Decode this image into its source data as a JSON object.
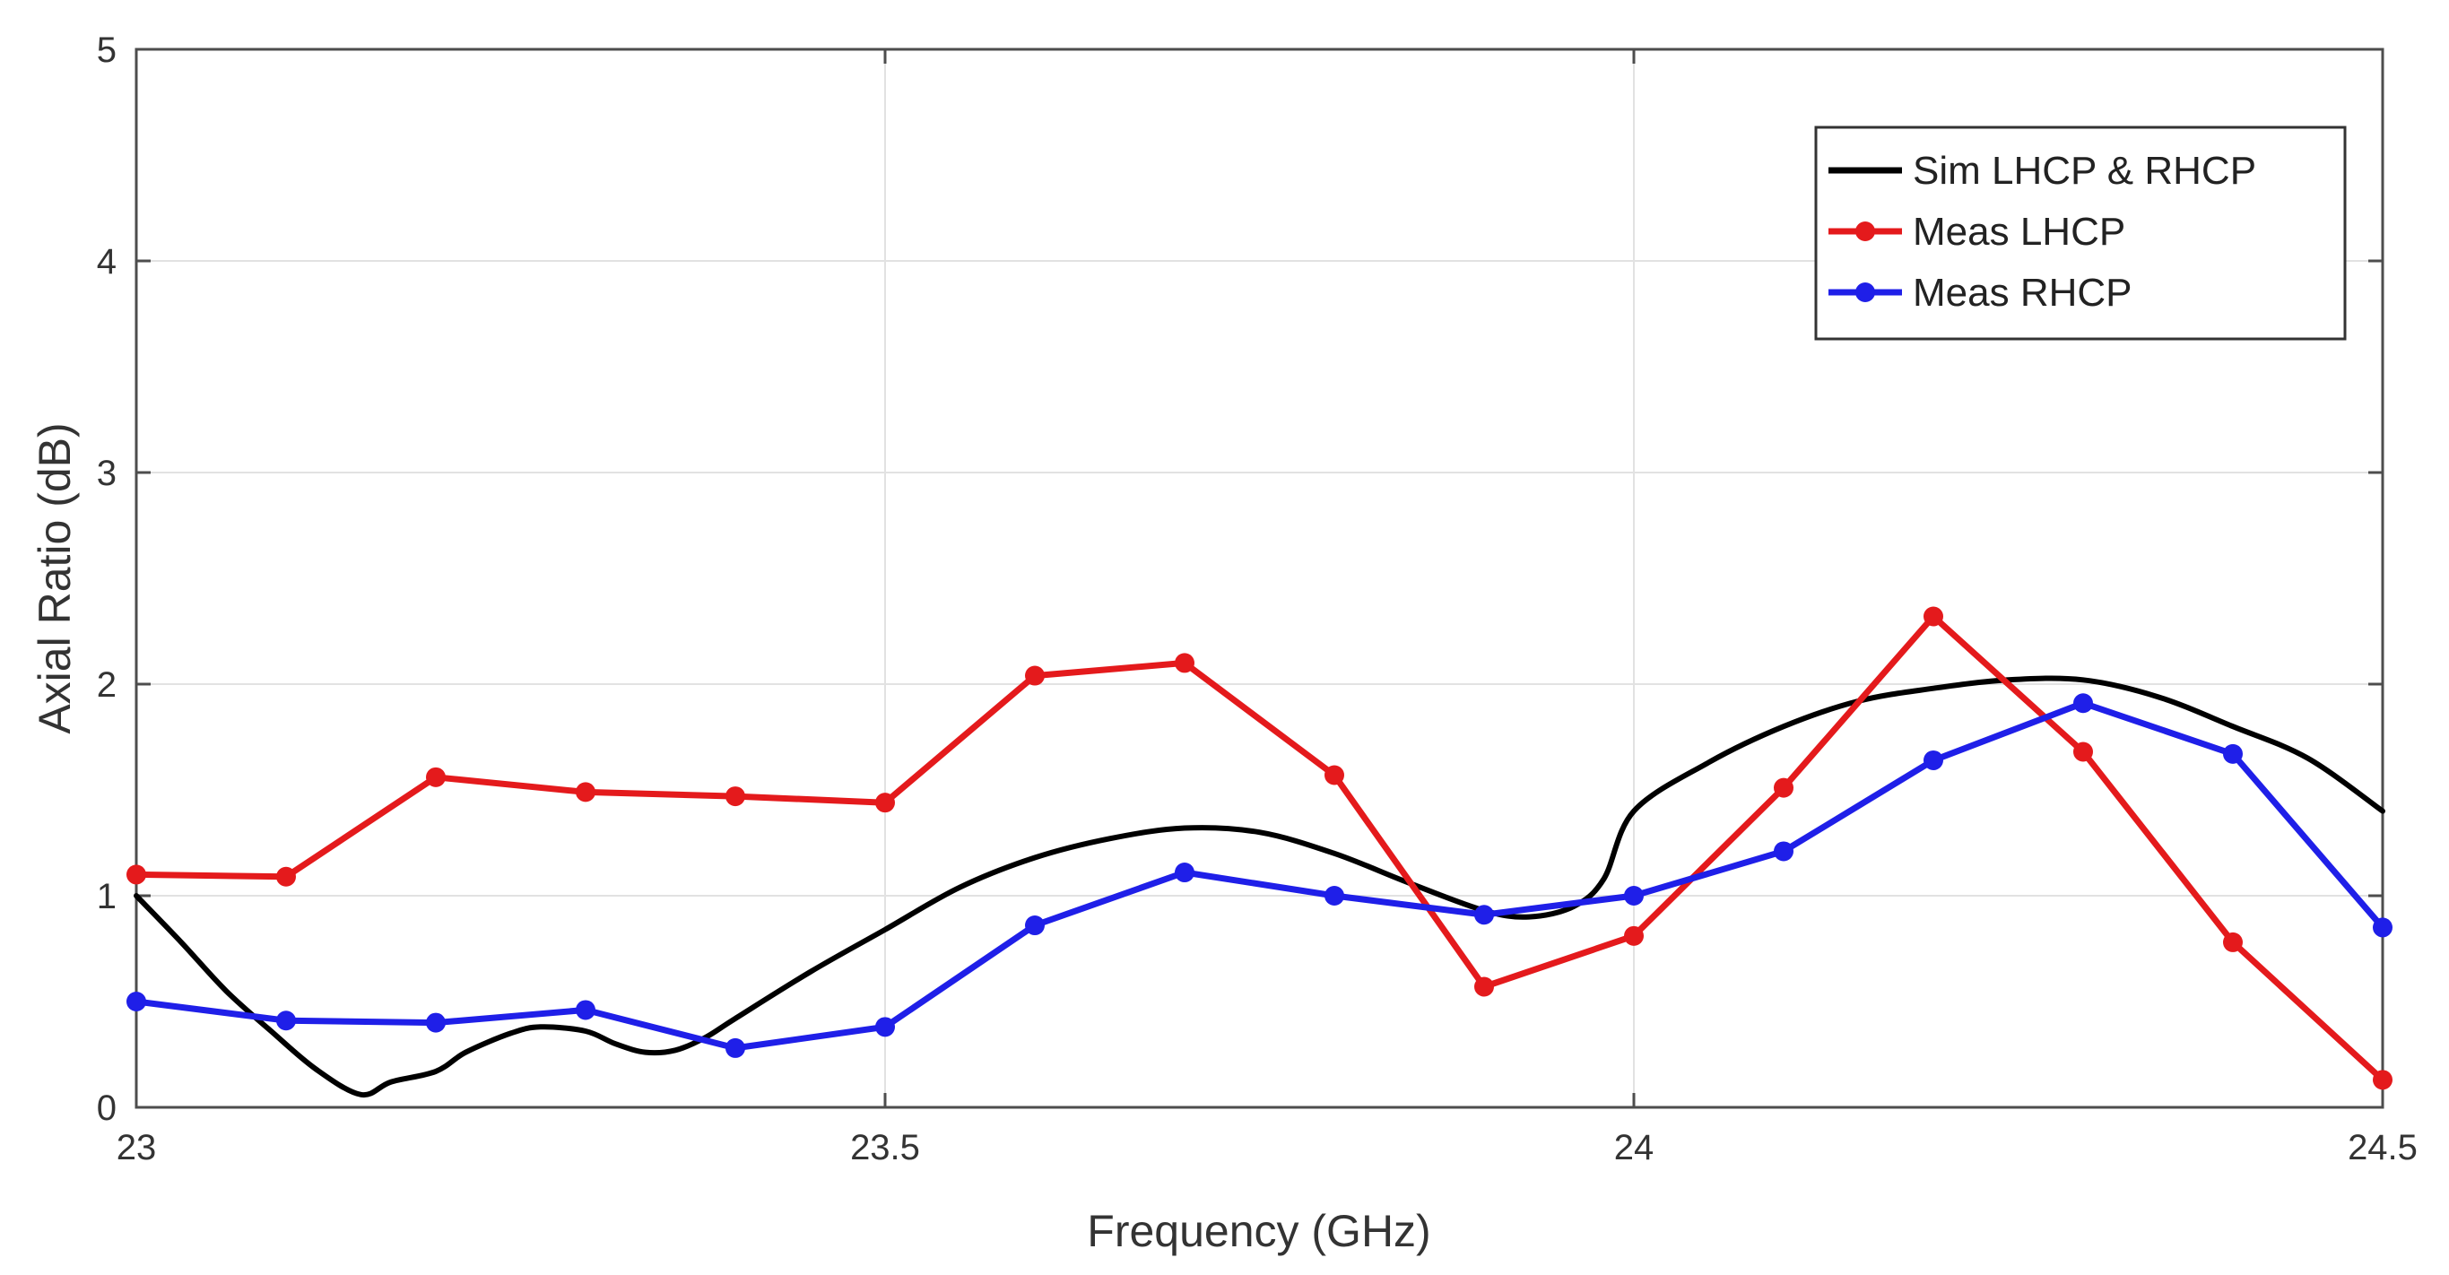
{
  "chart_data": {
    "type": "line",
    "xlabel": "Frequency (GHz)",
    "ylabel": "Axial Ratio (dB)",
    "xlim": [
      23,
      24.5
    ],
    "ylim": [
      0,
      5
    ],
    "xticks": [
      23,
      23.5,
      24,
      24.5
    ],
    "yticks": [
      0,
      1,
      2,
      3,
      4,
      5
    ],
    "xtick_labels": [
      "23",
      "23.5",
      "24",
      "24.5"
    ],
    "ytick_labels": [
      "0",
      "1",
      "2",
      "3",
      "4",
      "5"
    ],
    "grid": true,
    "legend_position": "top-right",
    "series": [
      {
        "name": "Sim LHCP & RHCP",
        "color": "#000000",
        "markers": false,
        "x": [
          23.0,
          23.03,
          23.06,
          23.09,
          23.12,
          23.15,
          23.17,
          23.2,
          23.22,
          23.25,
          23.27,
          23.3,
          23.32,
          23.34,
          23.36,
          23.38,
          23.4,
          23.45,
          23.5,
          23.55,
          23.6,
          23.65,
          23.7,
          23.75,
          23.8,
          23.85,
          23.9,
          23.93,
          23.96,
          23.98,
          24.0,
          24.05,
          24.1,
          24.15,
          24.2,
          24.25,
          24.3,
          24.35,
          24.4,
          24.45,
          24.5
        ],
        "y": [
          1.0,
          0.78,
          0.55,
          0.36,
          0.18,
          0.06,
          0.12,
          0.17,
          0.26,
          0.35,
          0.38,
          0.36,
          0.3,
          0.26,
          0.27,
          0.33,
          0.42,
          0.64,
          0.84,
          1.04,
          1.18,
          1.27,
          1.32,
          1.3,
          1.2,
          1.06,
          0.93,
          0.9,
          0.95,
          1.08,
          1.4,
          1.63,
          1.8,
          1.92,
          1.98,
          2.02,
          2.02,
          1.94,
          1.8,
          1.65,
          1.4
        ]
      },
      {
        "name": "Meas LHCP",
        "color": "#e41a1c",
        "markers": true,
        "x": [
          23.0,
          23.1,
          23.2,
          23.3,
          23.4,
          23.5,
          23.6,
          23.7,
          23.8,
          23.9,
          24.0,
          24.1,
          24.2,
          24.3,
          24.4,
          24.5
        ],
        "y": [
          1.1,
          1.09,
          1.56,
          1.49,
          1.47,
          1.44,
          2.04,
          2.1,
          1.57,
          0.57,
          0.81,
          1.51,
          2.32,
          1.68,
          0.78,
          0.13
        ]
      },
      {
        "name": "Meas RHCP",
        "color": "#1f1fe8",
        "markers": true,
        "x": [
          23.0,
          23.1,
          23.2,
          23.3,
          23.4,
          23.5,
          23.6,
          23.7,
          23.8,
          23.9,
          24.0,
          24.1,
          24.2,
          24.3,
          24.4,
          24.5
        ],
        "y": [
          0.5,
          0.41,
          0.4,
          0.46,
          0.28,
          0.38,
          0.86,
          1.11,
          1.0,
          0.91,
          1.0,
          1.21,
          1.64,
          1.91,
          1.67,
          0.85
        ]
      }
    ]
  }
}
